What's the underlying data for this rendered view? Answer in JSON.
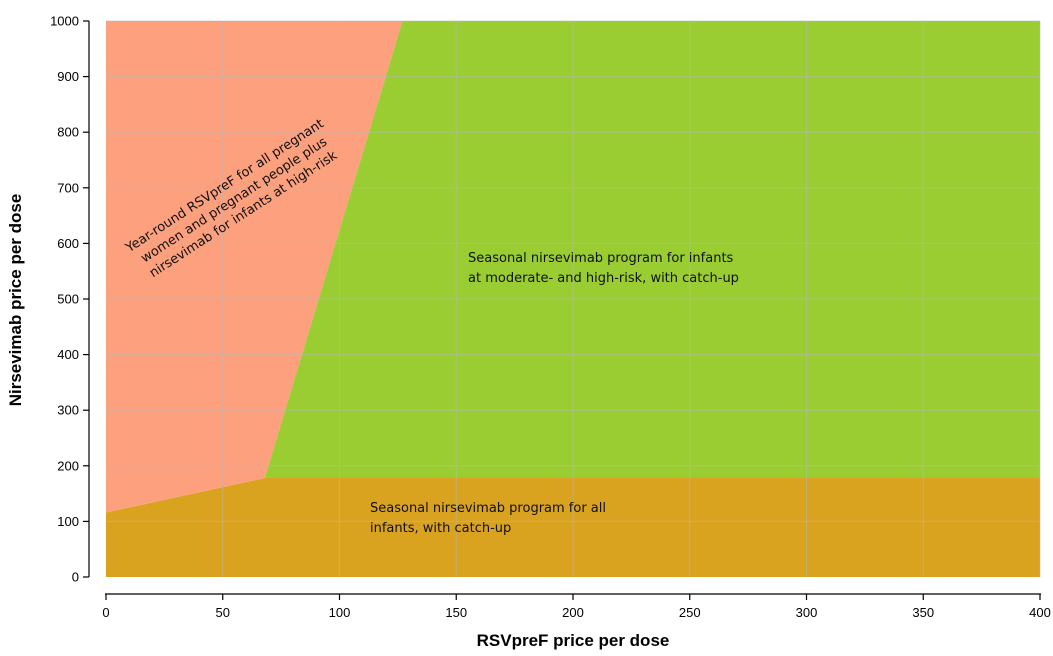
{
  "chart_data": {
    "type": "area",
    "title": "",
    "xlabel": "RSVpreF price per dose",
    "ylabel": "Nirsevimab price per dose",
    "xlim": [
      0,
      400
    ],
    "ylim": [
      0,
      1000
    ],
    "x_ticks": [
      0,
      50,
      100,
      150,
      200,
      250,
      300,
      350,
      400
    ],
    "y_ticks": [
      0,
      100,
      200,
      300,
      400,
      500,
      600,
      700,
      800,
      900,
      1000
    ],
    "grid": true,
    "regions": [
      {
        "label_lines": [
          "Seasonal nirsevimab program for all",
          "infants, with catch-up"
        ],
        "color": "#D9A21F",
        "polygon": [
          [
            0,
            0
          ],
          [
            400,
            0
          ],
          [
            400,
            178
          ],
          [
            68,
            178
          ],
          [
            0,
            116
          ]
        ]
      },
      {
        "label_lines": [
          "Year-round RSVpreF for all pregnant",
          "women and pregnant people plus",
          "nirsevimab for infants at high-risk"
        ],
        "color": "#FCA07E",
        "polygon": [
          [
            0,
            116
          ],
          [
            68,
            178
          ],
          [
            127,
            1000
          ],
          [
            0,
            1000
          ]
        ]
      },
      {
        "label_lines": [
          "Seasonal nirsevimab program for infants",
          "at moderate- and high-risk, with catch-up"
        ],
        "color": "#9ACD32",
        "polygon": [
          [
            68,
            178
          ],
          [
            400,
            178
          ],
          [
            400,
            1000
          ],
          [
            127,
            1000
          ]
        ]
      }
    ]
  }
}
